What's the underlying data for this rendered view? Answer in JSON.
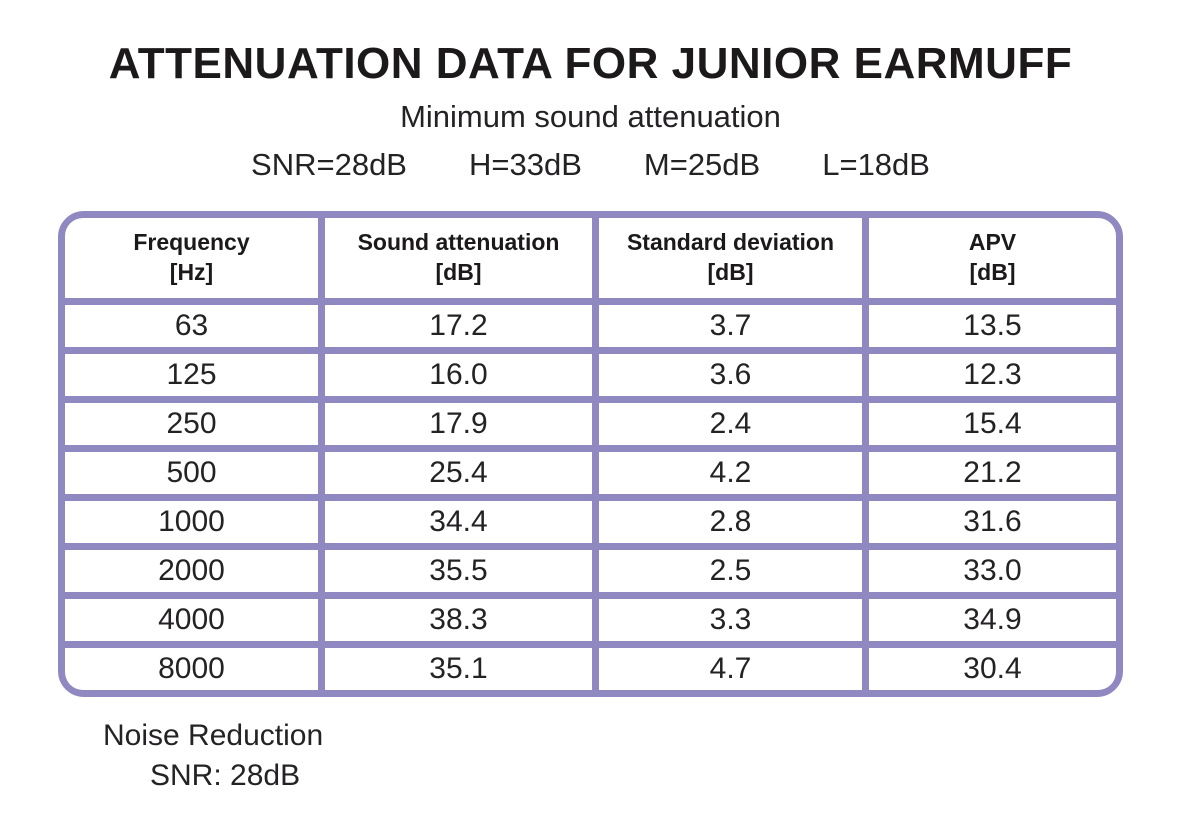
{
  "page": {
    "title": "ATTENUATION DATA FOR JUNIOR EARMUFF",
    "subtitle": "Minimum sound attenuation",
    "summary": {
      "snr": "SNR=28dB",
      "h": "H=33dB",
      "m": "M=25dB",
      "l": "L=18dB"
    }
  },
  "colors": {
    "accent_purple": "#9089c1",
    "text_black": "#1e1c1d",
    "background": "#ffffff"
  },
  "table": {
    "columns": [
      {
        "label": "Frequency",
        "unit": "[Hz]"
      },
      {
        "label": "Sound attenuation",
        "unit": "[dB]"
      },
      {
        "label": "Standard deviation",
        "unit": "[dB]"
      },
      {
        "label": "APV",
        "unit": "[dB]"
      }
    ],
    "rows": [
      [
        "63",
        "17.2",
        "3.7",
        "13.5"
      ],
      [
        "125",
        "16.0",
        "3.6",
        "12.3"
      ],
      [
        "250",
        "17.9",
        "2.4",
        "15.4"
      ],
      [
        "500",
        "25.4",
        "4.2",
        "21.2"
      ],
      [
        "1000",
        "34.4",
        "2.8",
        "31.6"
      ],
      [
        "2000",
        "35.5",
        "2.5",
        "33.0"
      ],
      [
        "4000",
        "38.3",
        "3.3",
        "34.9"
      ],
      [
        "8000",
        "35.1",
        "4.7",
        "30.4"
      ]
    ]
  },
  "footer": {
    "line1": "Noise Reduction",
    "line2": "SNR: 28dB"
  }
}
